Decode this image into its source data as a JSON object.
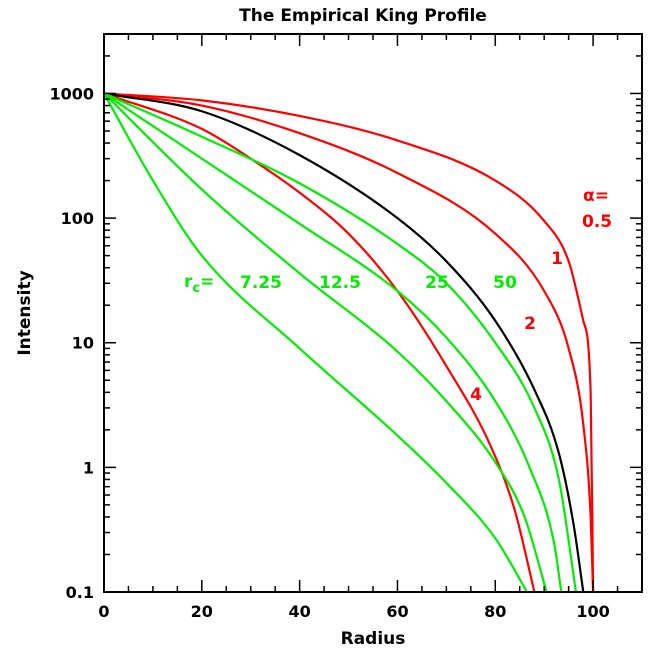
{
  "chart_data": {
    "type": "line",
    "title": "The Empirical King Profile",
    "xlabel": "Radius",
    "ylabel": "Intensity",
    "xlim": [
      0,
      110
    ],
    "ylim": [
      0.1,
      3000
    ],
    "y_scale": "log",
    "x_ticks": [
      0,
      20,
      40,
      60,
      80,
      100
    ],
    "x_tick_labels": [
      "0",
      "20",
      "40",
      "60",
      "80",
      "100"
    ],
    "y_ticks": [
      0.1,
      1,
      10,
      100,
      1000
    ],
    "y_tick_labels": [
      "0.1",
      "1",
      "10",
      "100",
      "1000"
    ],
    "grid": false,
    "colors": {
      "red": "#ff0000",
      "black": "#000000",
      "green": "#00ee00"
    },
    "series": [
      {
        "color": "#ff0000",
        "x": [
          0,
          20,
          40,
          60,
          80,
          90,
          95,
          98,
          99.5,
          100
        ],
        "y": [
          1000,
          880,
          660,
          420,
          200,
          95,
          45,
          15,
          4,
          0.1
        ]
      },
      {
        "color": "#ff0000",
        "x": [
          0,
          20,
          40,
          60,
          80,
          90,
          95,
          98,
          99.5,
          100
        ],
        "y": [
          1000,
          800,
          480,
          230,
          75,
          26,
          9,
          2.2,
          0.4,
          0.1
        ]
      },
      {
        "color": "#000000",
        "x": [
          0,
          20,
          40,
          60,
          70,
          80,
          88,
          93,
          96,
          98
        ],
        "y": [
          1000,
          720,
          320,
          100,
          45,
          15,
          4.2,
          1.3,
          0.35,
          0.1
        ]
      },
      {
        "color": "#ff0000",
        "x": [
          0,
          20,
          30,
          40,
          50,
          60,
          70,
          79,
          84,
          88
        ],
        "y": [
          1000,
          520,
          300,
          160,
          75,
          26,
          6.5,
          1.5,
          0.45,
          0.1
        ]
      },
      {
        "color": "#00ee00",
        "x": [
          0,
          20,
          40,
          60,
          70,
          80,
          88,
          93,
          96.5
        ],
        "y": [
          1000,
          450,
          190,
          62,
          30,
          10,
          3,
          0.8,
          0.1
        ]
      },
      {
        "color": "#00ee00",
        "x": [
          0,
          20,
          40,
          60,
          70,
          80,
          87,
          92,
          93.5
        ],
        "y": [
          1000,
          300,
          90,
          26,
          11,
          3.4,
          1,
          0.25,
          0.1
        ]
      },
      {
        "color": "#00ee00",
        "x": [
          0,
          20,
          40,
          60,
          70,
          80,
          86,
          90.5
        ],
        "y": [
          1000,
          170,
          36,
          8.5,
          3.4,
          1.1,
          0.4,
          0.1
        ]
      },
      {
        "color": "#00ee00",
        "x": [
          0,
          10,
          20,
          40,
          60,
          70,
          80,
          86.5
        ],
        "y": [
          1000,
          200,
          50,
          9,
          1.8,
          0.75,
          0.27,
          0.1
        ]
      }
    ],
    "annotations": {
      "alpha_label": "α=",
      "alpha_values": [
        "0.5",
        "1",
        "2",
        "4"
      ],
      "rc_label_main": "r",
      "rc_label_sub": "c",
      "rc_label_eq": "=",
      "rc_values": [
        "7.25",
        "12.5",
        "25",
        "50"
      ]
    }
  }
}
